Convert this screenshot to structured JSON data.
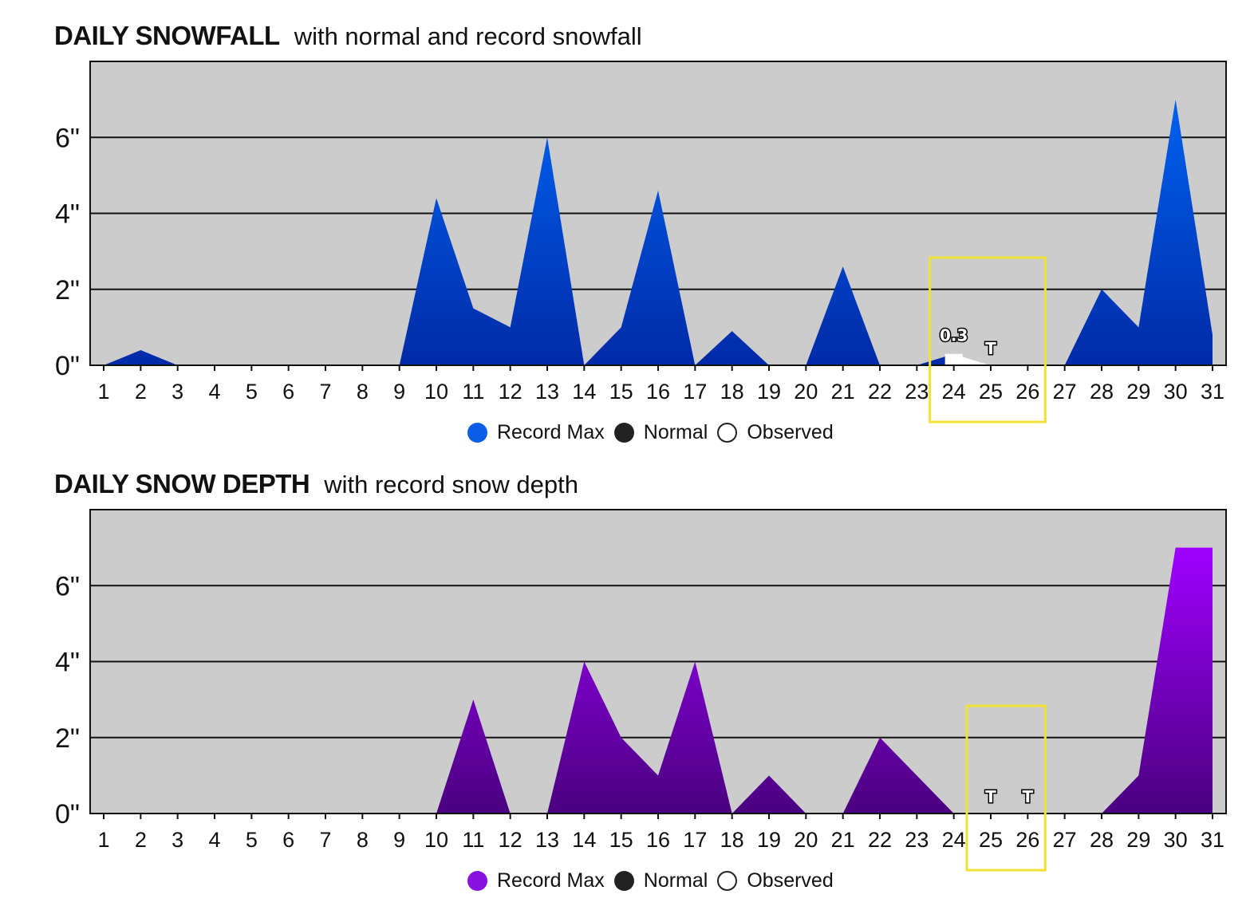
{
  "chart_data": [
    {
      "type": "area",
      "title": "DAILY SNOWFALL",
      "subtitle": "with normal and record snowfall",
      "xlabel": "",
      "ylabel": "",
      "ylim": [
        0,
        8
      ],
      "yticks": [
        0,
        2,
        4,
        6
      ],
      "ytick_labels": [
        "0\"",
        "2\"",
        "4\"",
        "6\""
      ],
      "grid": true,
      "x": [
        1,
        2,
        3,
        4,
        5,
        6,
        7,
        8,
        9,
        10,
        11,
        12,
        13,
        14,
        15,
        16,
        17,
        18,
        19,
        20,
        21,
        22,
        23,
        24,
        25,
        26,
        27,
        28,
        29,
        30,
        31
      ],
      "series": [
        {
          "name": "Record Max",
          "values": [
            0,
            0.4,
            0,
            0,
            0,
            0,
            0,
            0,
            0,
            4.4,
            1.5,
            1.0,
            6.0,
            0,
            1.0,
            4.6,
            0,
            0.9,
            0,
            0,
            2.6,
            0,
            0,
            0.3,
            0,
            0,
            0,
            2.0,
            1.0,
            7.0,
            0.8
          ]
        },
        {
          "name": "Observed",
          "values": [
            null,
            null,
            null,
            null,
            null,
            null,
            null,
            null,
            null,
            null,
            null,
            null,
            null,
            null,
            null,
            null,
            null,
            null,
            null,
            null,
            null,
            null,
            null,
            0.3,
            0,
            0,
            null,
            null,
            null,
            null,
            null
          ]
        }
      ],
      "annotations": [
        {
          "day": 24,
          "text": "0.3"
        },
        {
          "day": 25,
          "text": "T"
        }
      ],
      "highlight_days": [
        24,
        25,
        26
      ],
      "legend": [
        "Record Max",
        "Normal",
        "Observed"
      ],
      "legend_placement": "bottom-center",
      "colors": {
        "top": "#0062ef",
        "bottom": "#002aa8",
        "legend": "#0a5de6"
      }
    },
    {
      "type": "area",
      "title": "DAILY SNOW DEPTH",
      "subtitle": "with record snow depth",
      "xlabel": "",
      "ylabel": "",
      "ylim": [
        0,
        8
      ],
      "yticks": [
        0,
        2,
        4,
        6
      ],
      "ytick_labels": [
        "0\"",
        "2\"",
        "4\"",
        "6\""
      ],
      "grid": true,
      "x": [
        1,
        2,
        3,
        4,
        5,
        6,
        7,
        8,
        9,
        10,
        11,
        12,
        13,
        14,
        15,
        16,
        17,
        18,
        19,
        20,
        21,
        22,
        23,
        24,
        25,
        26,
        27,
        28,
        29,
        30,
        31
      ],
      "series": [
        {
          "name": "Record Max",
          "values": [
            0,
            0,
            0,
            0,
            0,
            0,
            0,
            0,
            0,
            0,
            3,
            0,
            0,
            4,
            2,
            1,
            4,
            0,
            1,
            0,
            0,
            2,
            1,
            0,
            0,
            0,
            0,
            0,
            1,
            7,
            7
          ]
        },
        {
          "name": "Observed",
          "values": [
            null,
            null,
            null,
            null,
            null,
            null,
            null,
            null,
            null,
            null,
            null,
            null,
            null,
            null,
            null,
            null,
            null,
            null,
            null,
            null,
            null,
            null,
            null,
            null,
            0,
            0,
            null,
            null,
            null,
            null,
            null
          ]
        }
      ],
      "annotations": [
        {
          "day": 25,
          "text": "T"
        },
        {
          "day": 26,
          "text": "T"
        }
      ],
      "highlight_days": [
        25,
        26
      ],
      "legend": [
        "Record Max",
        "Normal",
        "Observed"
      ],
      "legend_placement": "bottom-center",
      "colors": {
        "top": "#9f00ff",
        "bottom": "#4a007f",
        "legend": "#8a10e0"
      }
    }
  ]
}
